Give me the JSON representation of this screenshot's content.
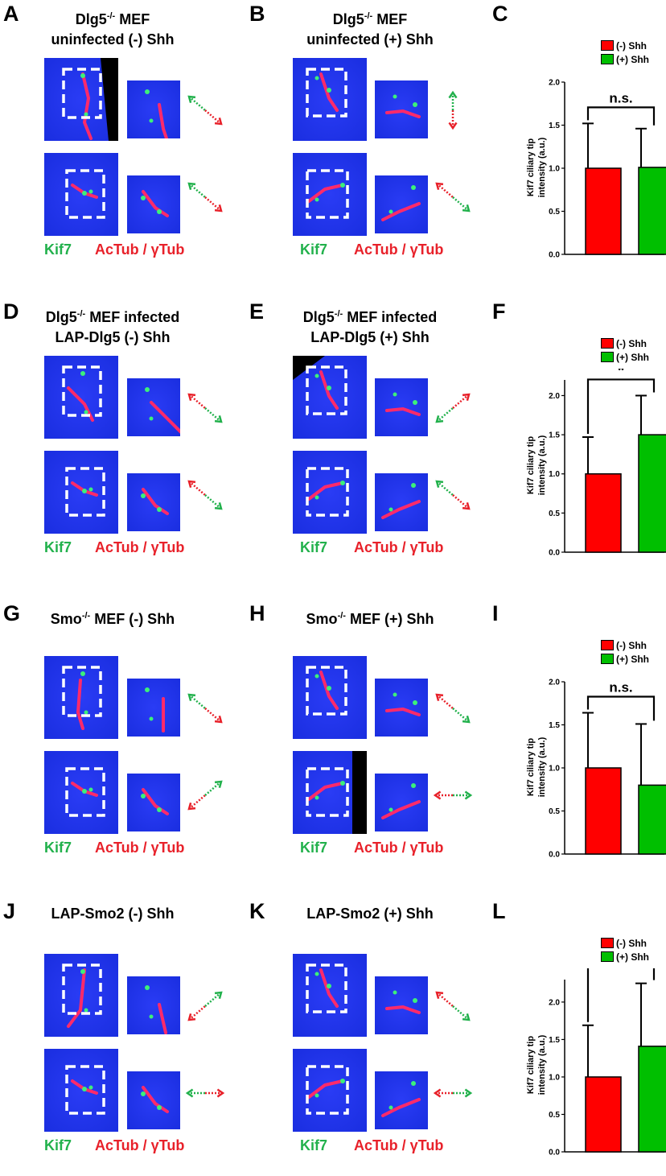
{
  "colors": {
    "neg": "#ff0000",
    "pos": "#00bf00",
    "kif": "#22b14c",
    "actub": "#e8212a",
    "nucleus": "#1a2ee0",
    "black": "#000000"
  },
  "stain_labels": {
    "kif7": "Kif7",
    "actub": "AcTub / γTub"
  },
  "legend": {
    "neg": "(-)  Shh",
    "pos": "(+) Shh"
  },
  "rows": [
    {
      "left": {
        "letter": "A",
        "title_main": "Dlg5",
        "title_sup": "-/-",
        "title_rest": " MEF",
        "title_line2": "uninfected (-) Shh"
      },
      "mid": {
        "letter": "B",
        "title_main": "Dlg5",
        "title_sup": "-/-",
        "title_rest": " MEF",
        "title_line2": "uninfected (+) Shh"
      },
      "chart": {
        "letter": "C",
        "sig": "n.s."
      }
    },
    {
      "left": {
        "letter": "D",
        "title_main": "Dlg5",
        "title_sup": "-/-",
        "title_rest": " MEF infected",
        "title_line2": "LAP-Dlg5 (-) Shh"
      },
      "mid": {
        "letter": "E",
        "title_main": "Dlg5",
        "title_sup": "-/-",
        "title_rest": " MEF infected",
        "title_line2": "LAP-Dlg5 (+) Shh"
      },
      "chart": {
        "letter": "F",
        "sig": "*"
      }
    },
    {
      "left": {
        "letter": "G",
        "title_main": "Smo",
        "title_sup": "-/-",
        "title_rest": " MEF (-) Shh",
        "title_line2": ""
      },
      "mid": {
        "letter": "H",
        "title_main": "Smo",
        "title_sup": "-/-",
        "title_rest": " MEF (+) Shh",
        "title_line2": ""
      },
      "chart": {
        "letter": "I",
        "sig": "n.s."
      }
    },
    {
      "left": {
        "letter": "J",
        "title_main": "LAP-Smo2 (-) Shh",
        "title_sup": "",
        "title_rest": "",
        "title_line2": ""
      },
      "mid": {
        "letter": "K",
        "title_main": "LAP-Smo2 (+) Shh",
        "title_sup": "",
        "title_rest": "",
        "title_line2": ""
      },
      "chart": {
        "letter": "L",
        "sig": "*"
      }
    }
  ],
  "chart_data": [
    {
      "type": "bar",
      "title": "",
      "xlabel": "",
      "ylabel": "Kif7 ciliary tip intensity (a.u.)",
      "categories": [
        "(-)  Shh",
        "(+) Shh"
      ],
      "values": [
        1.0,
        1.01
      ],
      "errors": [
        0.52,
        0.45
      ],
      "ylim": [
        0,
        2.0
      ],
      "yticks": [
        "0.0",
        "0.5",
        "1.0",
        "1.5",
        "2.0"
      ],
      "significance": "n.s."
    },
    {
      "type": "bar",
      "title": "",
      "xlabel": "",
      "ylabel": "Kif7 ciliary tip intensity (a.u.)",
      "categories": [
        "(-)  Shh",
        "(+) Shh"
      ],
      "values": [
        1.0,
        1.5
      ],
      "errors": [
        0.47,
        0.5
      ],
      "ylim": [
        0,
        2.2
      ],
      "yticks": [
        "0.0",
        "0.5",
        "1.0",
        "1.5",
        "2.0"
      ],
      "significance": "*"
    },
    {
      "type": "bar",
      "title": "",
      "xlabel": "",
      "ylabel": "Kif7 ciliary tip intensity (a.u.)",
      "categories": [
        "(-)  Shh",
        "(+) Shh"
      ],
      "values": [
        1.0,
        0.8
      ],
      "errors": [
        0.64,
        0.71
      ],
      "ylim": [
        0,
        2.0
      ],
      "yticks": [
        "0.0",
        "0.5",
        "1.0",
        "1.5",
        "2.0"
      ],
      "significance": "n.s."
    },
    {
      "type": "bar",
      "title": "",
      "xlabel": "",
      "ylabel": "Kif7 ciliary tip intensity (a.u.)",
      "categories": [
        "(-)  Shh",
        "(+) Shh"
      ],
      "values": [
        1.0,
        1.41
      ],
      "errors": [
        0.69,
        0.84
      ],
      "ylim": [
        0,
        2.3
      ],
      "yticks": [
        "0.0",
        "0.5",
        "1.0",
        "1.5",
        "2.0"
      ],
      "significance": "*"
    }
  ]
}
